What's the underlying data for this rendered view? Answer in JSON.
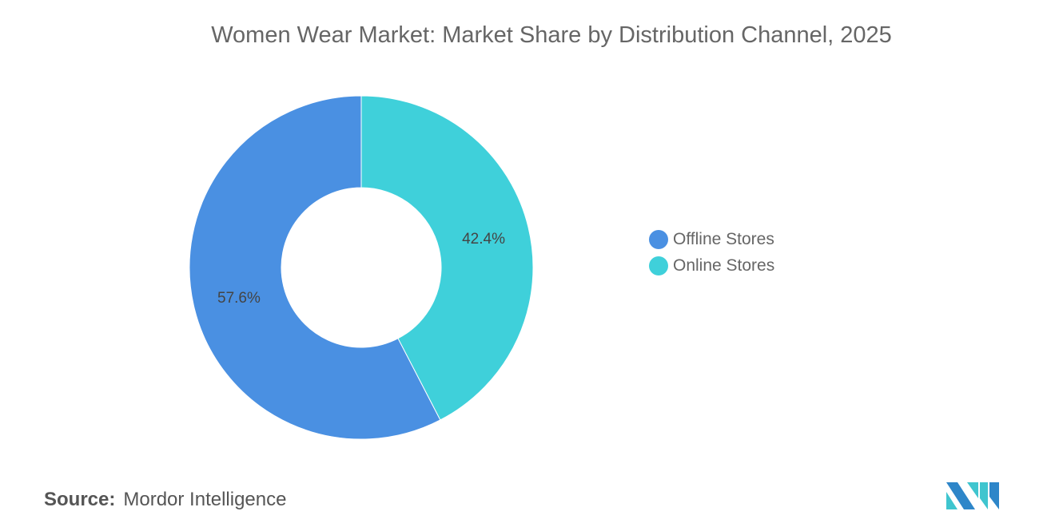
{
  "title": "Women Wear Market: Market Share by Distribution Channel, 2025",
  "chart_data": {
    "type": "pie",
    "donut": true,
    "title": "Women Wear Market: Market Share by Distribution Channel, 2025",
    "categories": [
      "Offline Stores",
      "Online Stores"
    ],
    "values": [
      57.6,
      42.4
    ],
    "labels": [
      "57.6%",
      "42.4%"
    ],
    "colors": [
      "#4a90e2",
      "#3fd0da"
    ],
    "legend_position": "right"
  },
  "source": {
    "label": "Source:",
    "value": "Mordor Intelligence"
  },
  "logo": {
    "colors": [
      "#2e86c9",
      "#3fc5cf"
    ]
  }
}
